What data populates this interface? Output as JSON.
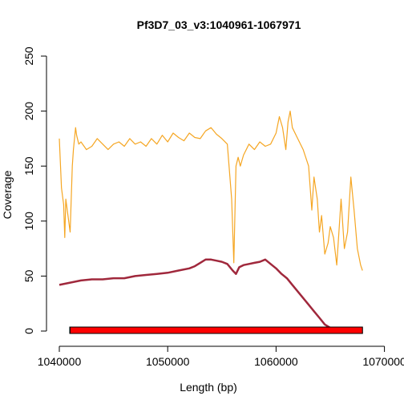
{
  "chart_data": {
    "type": "line",
    "title": "Pf3D7_03_v3:1040961-1067971",
    "xlabel": "Length (bp)",
    "ylabel": "Coverage",
    "xlim": [
      1040000,
      1070000
    ],
    "ylim": [
      0,
      250
    ],
    "x_ticks": [
      1040000,
      1050000,
      1060000,
      1070000
    ],
    "x_tick_labels": [
      "1040000",
      "1050000",
      "1060000",
      "1070000"
    ],
    "y_ticks": [
      0,
      50,
      100,
      150,
      200,
      250
    ],
    "y_tick_labels": [
      "0",
      "50",
      "100",
      "150",
      "200",
      "250"
    ],
    "grid": false,
    "region": {
      "start": 1040961,
      "end": 1067971,
      "filled_start": 1041000,
      "filled_end": 1067971,
      "fill_color": "#ff0000",
      "outline_color": "#000000"
    },
    "series": [
      {
        "color": "#f5a623",
        "x": [
          1040000,
          1040200,
          1040400,
          1040500,
          1040600,
          1040800,
          1041000,
          1041200,
          1041300,
          1041500,
          1041600,
          1041800,
          1042000,
          1042500,
          1043000,
          1043500,
          1044000,
          1044500,
          1045000,
          1045500,
          1046000,
          1046500,
          1047000,
          1047500,
          1048000,
          1048500,
          1049000,
          1049500,
          1050000,
          1050500,
          1051000,
          1051500,
          1052000,
          1052500,
          1053000,
          1053500,
          1054000,
          1054500,
          1055000,
          1055500,
          1055900,
          1056100,
          1056300,
          1056500,
          1056700,
          1057000,
          1057500,
          1058000,
          1058500,
          1059000,
          1059500,
          1060000,
          1060300,
          1060600,
          1060900,
          1061100,
          1061300,
          1061500,
          1062000,
          1062500,
          1063000,
          1063300,
          1063500,
          1063800,
          1064000,
          1064200,
          1064500,
          1064800,
          1065000,
          1065300,
          1065600,
          1066000,
          1066300,
          1066600,
          1066900,
          1067200,
          1067500,
          1067800,
          1067971
        ],
        "values": [
          175,
          130,
          115,
          85,
          120,
          105,
          90,
          150,
          165,
          185,
          178,
          170,
          172,
          165,
          168,
          175,
          170,
          165,
          170,
          172,
          168,
          175,
          170,
          172,
          168,
          175,
          170,
          178,
          172,
          180,
          176,
          173,
          180,
          176,
          175,
          182,
          185,
          179,
          175,
          170,
          120,
          62,
          150,
          158,
          150,
          160,
          170,
          165,
          172,
          168,
          170,
          180,
          195,
          185,
          165,
          190,
          200,
          185,
          175,
          165,
          150,
          110,
          140,
          120,
          90,
          105,
          70,
          80,
          95,
          85,
          60,
          120,
          75,
          90,
          140,
          110,
          75,
          60,
          55
        ]
      },
      {
        "color": "#a0283c",
        "x": [
          1040000,
          1041000,
          1042000,
          1043000,
          1044000,
          1045000,
          1046000,
          1047000,
          1048000,
          1049000,
          1050000,
          1051000,
          1052000,
          1052500,
          1053000,
          1053500,
          1054000,
          1054500,
          1055000,
          1055500,
          1056000,
          1056300,
          1056600,
          1057000,
          1057500,
          1058000,
          1058500,
          1059000,
          1059500,
          1060000,
          1060500,
          1061000,
          1061500,
          1062000,
          1062500,
          1063000,
          1063500,
          1064000,
          1064500,
          1065000,
          1065500,
          1066000,
          1067000,
          1067971
        ],
        "values": [
          42,
          44,
          46,
          47,
          47,
          48,
          48,
          50,
          51,
          52,
          53,
          55,
          57,
          59,
          62,
          65,
          65,
          64,
          63,
          61,
          55,
          52,
          58,
          60,
          61,
          62,
          63,
          65,
          61,
          57,
          52,
          48,
          42,
          36,
          30,
          24,
          18,
          12,
          6,
          3,
          1,
          0,
          0,
          0
        ]
      }
    ]
  }
}
